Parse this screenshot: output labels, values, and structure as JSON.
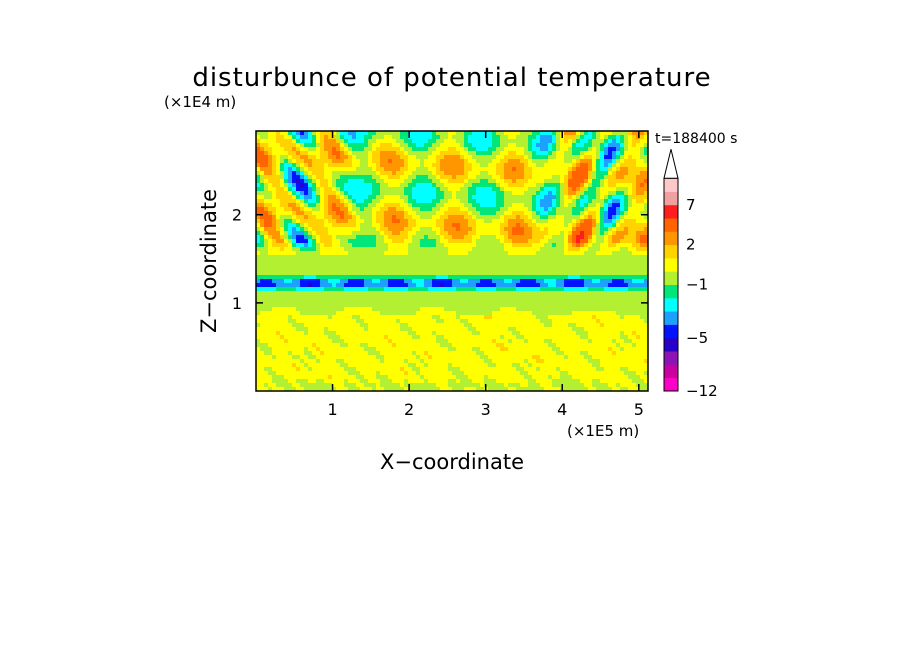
{
  "chart_data": {
    "type": "heatmap",
    "title": "disturbunce of potential temperature",
    "xlabel": "X−coordinate",
    "ylabel": "Z−coordinate",
    "x_unit": "(×1E5 m)",
    "y_unit": "(×1E4 m)",
    "time_label": "t=188400 s",
    "xlim": [
      0,
      5.12
    ],
    "ylim": [
      0,
      2.95
    ],
    "x_ticks": [
      {
        "value": 1,
        "label": "1"
      },
      {
        "value": 2,
        "label": "2"
      },
      {
        "value": 3,
        "label": "3"
      },
      {
        "value": 4,
        "label": "4"
      },
      {
        "value": 5,
        "label": "5"
      }
    ],
    "y_ticks": [
      {
        "value": 1,
        "label": "1"
      },
      {
        "value": 2,
        "label": "2"
      }
    ],
    "colorbar": {
      "levels": [
        -12,
        -11,
        -9,
        -7,
        -5,
        -4,
        -3,
        -2,
        -1,
        0,
        1,
        2,
        3,
        5,
        7,
        9,
        11
      ],
      "colors": [
        "#ff00c8",
        "#c800a0",
        "#8c14b4",
        "#2800c8",
        "#0014ff",
        "#1ea0ff",
        "#00ffff",
        "#00e678",
        "#b4f032",
        "#ffff00",
        "#ffd200",
        "#ff9600",
        "#ff6400",
        "#ff1e1e",
        "#f0a0a0",
        "#ffc8c8"
      ],
      "tick_labels": [
        {
          "value": -12,
          "label": "−12"
        },
        {
          "value": -5,
          "label": "−5"
        },
        {
          "value": -1,
          "label": "−1"
        },
        {
          "value": 2,
          "label": "2"
        },
        {
          "value": 7,
          "label": "7"
        }
      ],
      "extend": "max"
    }
  }
}
